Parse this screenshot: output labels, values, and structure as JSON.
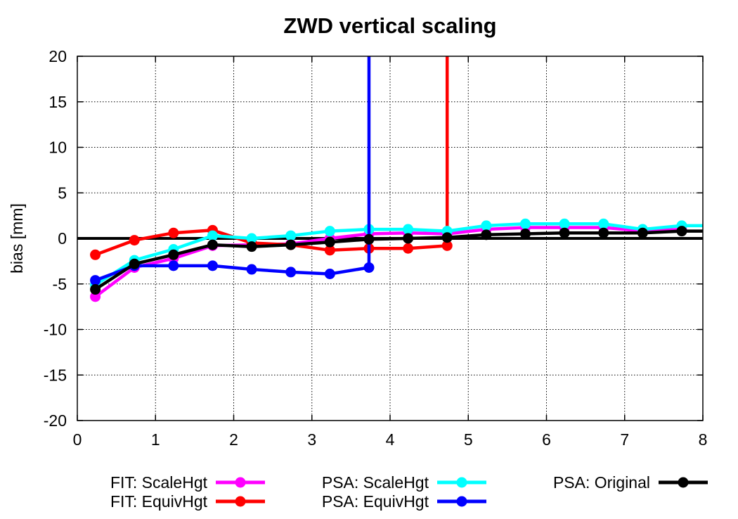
{
  "chart_data": {
    "type": "line",
    "title": "ZWD vertical scaling",
    "xlabel": "",
    "ylabel": "bias [mm]",
    "xlim": [
      0,
      8
    ],
    "ylim": [
      -20,
      20
    ],
    "xticks": [
      0,
      1,
      2,
      3,
      4,
      5,
      6,
      7,
      8
    ],
    "yticks": [
      20,
      15,
      10,
      5,
      0,
      -5,
      -10,
      -15,
      -20
    ],
    "grid": true,
    "legend_position": "bottom",
    "series": [
      {
        "name": "FIT: ScaleHgt",
        "color": "#ff00ff",
        "x": [
          0.23,
          0.73,
          1.23,
          1.73,
          2.23,
          2.73,
          3.23,
          3.73,
          4.23,
          4.73,
          5.23,
          5.73,
          6.23,
          6.73,
          7.23,
          7.73
        ],
        "y": [
          -6.4,
          -3.2,
          -2.2,
          -0.8,
          -0.7,
          -0.6,
          0.0,
          0.5,
          0.6,
          0.5,
          1.0,
          1.2,
          1.2,
          1.2,
          0.8,
          1.0
        ]
      },
      {
        "name": "FIT: EquivHgt",
        "color": "#ff0000",
        "x": [
          0.23,
          0.73,
          1.23,
          1.73,
          2.23,
          2.73,
          3.23,
          3.73,
          4.23,
          4.73
        ],
        "y": [
          -1.8,
          -0.2,
          0.6,
          0.9,
          -0.5,
          -0.7,
          -1.3,
          -1.1,
          -1.1,
          -0.8
        ],
        "vertical_line_at_x": 4.73
      },
      {
        "name": "PSA: ScaleHgt",
        "color": "#00ffff",
        "x": [
          0.23,
          0.73,
          1.23,
          1.73,
          2.23,
          2.73,
          3.23,
          3.73,
          4.23,
          4.73,
          5.23,
          5.73,
          6.23,
          6.73,
          7.23,
          7.73,
          8.0
        ],
        "y": [
          -5.1,
          -2.4,
          -1.2,
          0.3,
          0.0,
          0.3,
          0.8,
          1.0,
          1.0,
          0.8,
          1.4,
          1.6,
          1.6,
          1.6,
          1.0,
          1.4,
          1.4
        ]
      },
      {
        "name": "PSA: EquivHgt",
        "color": "#0000ff",
        "x": [
          0.23,
          0.73,
          1.23,
          1.73,
          2.23,
          2.73,
          3.23,
          3.73
        ],
        "y": [
          -4.6,
          -3.0,
          -3.0,
          -3.0,
          -3.4,
          -3.7,
          -3.9,
          -3.2
        ],
        "vertical_line_at_x": 3.73
      },
      {
        "name": "PSA: Original",
        "color": "#000000",
        "x": [
          0.23,
          0.73,
          1.23,
          1.73,
          2.23,
          2.73,
          3.23,
          3.73,
          4.23,
          4.73,
          5.23,
          5.73,
          6.23,
          6.73,
          7.23,
          7.73,
          8.0
        ],
        "y": [
          -5.6,
          -2.8,
          -1.8,
          -0.7,
          -0.9,
          -0.7,
          -0.4,
          -0.1,
          0.0,
          0.1,
          0.4,
          0.5,
          0.6,
          0.6,
          0.6,
          0.8,
          0.8
        ]
      }
    ]
  }
}
